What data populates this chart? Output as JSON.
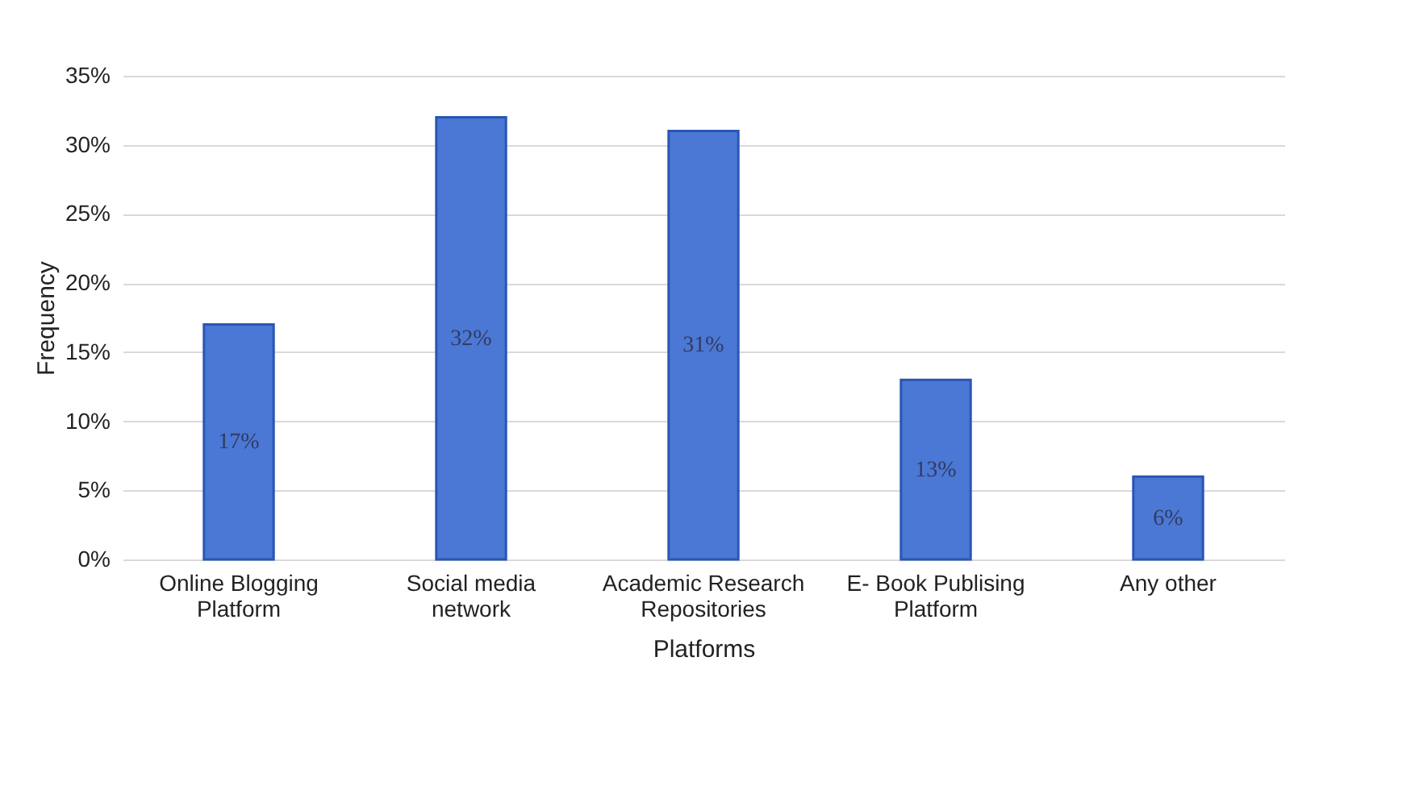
{
  "chart_data": {
    "type": "bar",
    "xlabel": "Platforms",
    "ylabel": "Frequency",
    "categories": [
      "Online Blogging Platform",
      "Social media network",
      "Academic Research Repositories",
      "E- Book Publising Platform",
      "Any other"
    ],
    "values": [
      17,
      32,
      31,
      13,
      6
    ],
    "value_labels": [
      "17%",
      "32%",
      "31%",
      "13%",
      "6%"
    ],
    "color": "#4a78d4",
    "ylim": [
      0,
      35
    ],
    "yticks": [
      {
        "value": 0,
        "label": "0%"
      },
      {
        "value": 5,
        "label": "5%"
      },
      {
        "value": 10,
        "label": "10%"
      },
      {
        "value": 15,
        "label": "15%"
      },
      {
        "value": 20,
        "label": "20%"
      },
      {
        "value": 25,
        "label": "25%"
      },
      {
        "value": 30,
        "label": "30%"
      },
      {
        "value": 35,
        "label": "35%"
      }
    ],
    "grid": "y"
  }
}
